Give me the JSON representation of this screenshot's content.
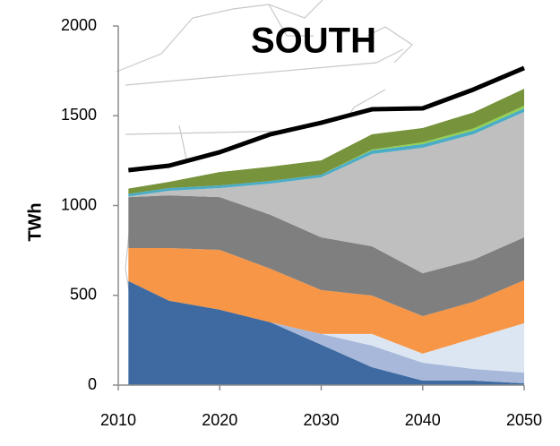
{
  "chart_data": {
    "type": "stacked_area",
    "title": "SOUTH",
    "y_label": "TWh",
    "x": [
      2011,
      2015,
      2020,
      2025,
      2030,
      2035,
      2040,
      2045,
      2050
    ],
    "series": [
      {
        "color": "#3e6aa1",
        "values": [
          580,
          470,
          420,
          350,
          225,
          100,
          25,
          25,
          10
        ]
      },
      {
        "color": "#a7b8da",
        "values": [
          0,
          0,
          0,
          0,
          60,
          120,
          100,
          65,
          60
        ]
      },
      {
        "color": "#dce6f2",
        "values": [
          0,
          0,
          0,
          0,
          0,
          65,
          50,
          170,
          275
        ]
      },
      {
        "color": "#f79646",
        "values": [
          183,
          293,
          333,
          298,
          244,
          214,
          209,
          204,
          239
        ]
      },
      {
        "color": "#7f7f7f",
        "values": [
          284,
          294,
          294,
          300,
          294,
          274,
          239,
          234,
          239
        ]
      },
      {
        "color": "#bfbfbf",
        "values": [
          3,
          25,
          50,
          174,
          334,
          514,
          699,
          699,
          698
        ]
      },
      {
        "color": "#4bacc6",
        "values": [
          15,
          15,
          15,
          15,
          15,
          20,
          20,
          20,
          20
        ]
      },
      {
        "color": "#92d050",
        "values": [
          0,
          0,
          0,
          0,
          0,
          5,
          10,
          12,
          15
        ]
      },
      {
        "color": "#77933c",
        "values": [
          30,
          35,
          75,
          80,
          80,
          85,
          80,
          90,
          95
        ]
      },
      {
        "color": "#ffffff",
        "values": [
          102,
          90,
          110,
          180,
          210,
          140,
          110,
          127,
          115
        ]
      }
    ],
    "total": {
      "type": "line",
      "color": "#000000",
      "values": [
        1197,
        1222,
        1297,
        1397,
        1461,
        1536,
        1541,
        1646,
        1766
      ]
    },
    "xlim": [
      2010,
      2050
    ],
    "xticks": [
      2010,
      2020,
      2030,
      2040,
      2050
    ],
    "ylim": [
      0,
      2000
    ],
    "yticks": [
      0,
      500,
      1000,
      1500,
      2000
    ]
  }
}
